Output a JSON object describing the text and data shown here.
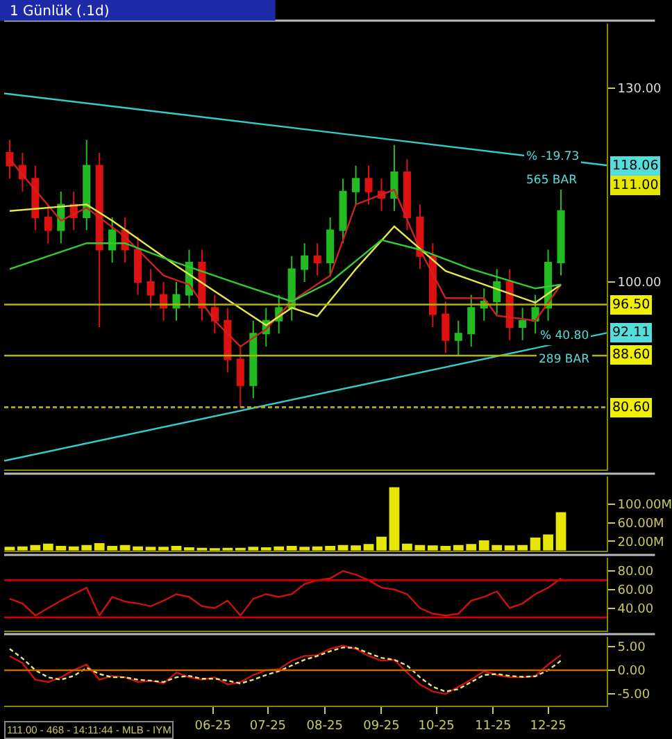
{
  "chart_data": [
    {
      "type": "candlestick",
      "title": "1 Günlük (.1d)",
      "x": [
        "2025-02-10",
        "2025-02-17",
        "2025-02-24",
        "2025-03-03",
        "2025-03-10",
        "2025-03-17",
        "2025-03-24",
        "2025-03-31",
        "2025-04-07",
        "2025-04-14",
        "2025-04-21",
        "2025-04-28",
        "2025-05-05",
        "2025-05-12",
        "2025-05-19",
        "2025-05-26",
        "2025-06-02",
        "2025-06-09",
        "2025-06-16",
        "2025-06-23",
        "2025-06-30",
        "2025-07-07",
        "2025-07-14",
        "2025-07-21",
        "2025-07-28",
        "2025-08-04",
        "2025-08-11",
        "2025-08-18",
        "2025-08-25",
        "2025-09-01",
        "2025-09-08",
        "2025-09-15",
        "2025-09-22",
        "2025-09-29",
        "2025-10-06",
        "2025-10-13",
        "2025-10-20",
        "2025-10-27",
        "2025-11-03",
        "2025-11-10",
        "2025-11-17",
        "2025-11-24",
        "2025-12-01",
        "2025-12-08"
      ],
      "ohlc": [
        [
          120,
          122,
          116,
          118
        ],
        [
          118,
          120,
          114,
          116
        ],
        [
          116,
          118,
          108,
          110
        ],
        [
          110,
          112,
          106,
          108
        ],
        [
          108,
          114,
          106,
          112
        ],
        [
          112,
          114,
          108,
          110
        ],
        [
          110,
          122,
          108,
          118
        ],
        [
          118,
          120,
          93,
          105
        ],
        [
          105,
          110,
          103,
          108
        ],
        [
          108,
          110,
          103,
          105
        ],
        [
          105,
          107,
          98,
          100
        ],
        [
          100,
          102,
          96,
          98
        ],
        [
          98,
          100,
          94,
          96
        ],
        [
          96,
          100,
          94,
          98
        ],
        [
          98,
          105,
          96,
          103
        ],
        [
          103,
          105,
          94,
          96
        ],
        [
          96,
          98,
          92,
          94
        ],
        [
          94,
          96,
          86,
          88
        ],
        [
          88,
          90,
          80.6,
          84
        ],
        [
          84,
          94,
          82,
          92
        ],
        [
          92,
          96,
          90,
          94
        ],
        [
          94,
          98,
          92,
          96
        ],
        [
          96,
          104,
          94,
          102
        ],
        [
          102,
          106,
          100,
          104
        ],
        [
          104,
          106,
          101,
          103
        ],
        [
          103,
          110,
          101,
          108
        ],
        [
          108,
          116,
          106,
          114
        ],
        [
          114,
          118,
          112,
          116
        ],
        [
          116,
          118,
          112,
          114
        ],
        [
          114,
          116,
          111,
          113
        ],
        [
          113,
          121.2,
          111,
          117
        ],
        [
          117,
          119,
          108,
          110
        ],
        [
          110,
          112,
          102,
          104
        ],
        [
          104,
          106,
          93,
          95
        ],
        [
          95,
          97,
          89,
          91
        ],
        [
          91,
          94,
          88.6,
          92
        ],
        [
          92,
          98,
          90,
          96
        ],
        [
          96,
          99,
          94,
          97
        ],
        [
          97,
          102,
          95,
          100
        ],
        [
          100,
          102,
          91,
          93
        ],
        [
          93,
          96,
          91,
          94
        ],
        [
          94,
          98,
          92,
          96
        ],
        [
          96,
          105,
          94,
          103
        ],
        [
          103,
          114.7,
          101,
          111
        ]
      ],
      "colors": [
        "#dd1111",
        "#dd1111",
        "#dd1111",
        "#dd1111",
        "#22bb22",
        "#dd1111",
        "#22bb22",
        "#dd1111",
        "#22bb22",
        "#dd1111",
        "#dd1111",
        "#dd1111",
        "#dd1111",
        "#22bb22",
        "#22bb22",
        "#dd1111",
        "#dd1111",
        "#dd1111",
        "#dd1111",
        "#22bb22",
        "#22bb22",
        "#22bb22",
        "#22bb22",
        "#22bb22",
        "#dd1111",
        "#22bb22",
        "#22bb22",
        "#22bb22",
        "#dd1111",
        "#dd1111",
        "#22bb22",
        "#dd1111",
        "#dd1111",
        "#dd1111",
        "#dd1111",
        "#22bb22",
        "#22bb22",
        "#22bb22",
        "#22bb22",
        "#dd1111",
        "#22bb22",
        "#22bb22",
        "#22bb22",
        "#22bb22"
      ],
      "series": [
        {
          "type": "line",
          "color": "#cc2222",
          "x": [
            "2025-02-10",
            "2025-03-10",
            "2025-03-24",
            "2025-04-14",
            "2025-05-05",
            "2025-05-19",
            "2025-06-02",
            "2025-06-16",
            "2025-06-30",
            "2025-07-14",
            "2025-08-04",
            "2025-08-18",
            "2025-09-08",
            "2025-09-22",
            "2025-10-06",
            "2025-10-27",
            "2025-11-03",
            "2025-11-24",
            "2025-12-08"
          ],
          "values": [
            119,
            109.5,
            111.5,
            107,
            101,
            99.6,
            94,
            90,
            92.7,
            97,
            101,
            112,
            114.3,
            105,
            97.5,
            97.5,
            94.8,
            94,
            99.6
          ]
        },
        {
          "type": "line",
          "color": "#e6e64d",
          "x": [
            "2025-02-10",
            "2025-03-24",
            "2025-04-07",
            "2025-05-12",
            "2025-06-30",
            "2025-07-14",
            "2025-07-28",
            "2025-08-18",
            "2025-09-08",
            "2025-10-06",
            "2025-10-27",
            "2025-11-24",
            "2025-12-08"
          ],
          "values": [
            111,
            112,
            109.5,
            102.5,
            93.3,
            96,
            94.7,
            102,
            108.6,
            101.7,
            99.6,
            96.8,
            99.6
          ]
        },
        {
          "type": "line",
          "color": "#33cc33",
          "x": [
            "2025-02-10",
            "2025-03-24",
            "2025-04-14",
            "2025-05-12",
            "2025-06-16",
            "2025-07-14",
            "2025-08-04",
            "2025-09-01",
            "2025-09-22",
            "2025-10-20",
            "2025-11-24",
            "2025-12-08"
          ],
          "values": [
            102,
            106,
            106,
            103,
            99.6,
            97,
            100,
            106.5,
            105,
            102,
            99,
            99.6
          ]
        },
        {
          "type": "line",
          "color": "#33cccc",
          "x": [
            "2025-02-07",
            "2026-01-02"
          ],
          "values": [
            129.2,
            118.06
          ]
        },
        {
          "type": "line",
          "color": "#33cccc",
          "x": [
            "2025-02-07",
            "2026-01-02"
          ],
          "values": [
            72.3,
            92.11
          ]
        }
      ],
      "xlim": [
        "2025-02-07",
        "2026-01-02"
      ],
      "ylim": [
        71,
        140
      ],
      "yticks": [
        {
          "value": 100,
          "label": "100.00"
        },
        {
          "value": 130,
          "label": "130.00"
        }
      ],
      "tick_labels": "y",
      "ref_lines": [
        {
          "axis": "y",
          "value": 96.5,
          "label": "96.50",
          "color": "#b3b300"
        },
        {
          "axis": "y",
          "value": 88.6,
          "label": "88.60",
          "color": "#b3b300"
        },
        {
          "axis": "y",
          "value": 80.6,
          "label": "80.60",
          "color": "#b3b300",
          "line_style": "dashed"
        }
      ],
      "annotations": [
        {
          "text": "118.06",
          "x": "2026-01-02",
          "y": 118.06
        },
        {
          "text": "92.11",
          "x": "2026-01-02",
          "y": 92.11
        },
        "111.00",
        "% -19.73",
        "565 BAR",
        "% 40.80",
        "289 BAR"
      ]
    },
    {
      "type": "bar",
      "color": "#e6e600",
      "x": [
        "2025-02-10",
        "2025-02-17",
        "2025-02-24",
        "2025-03-03",
        "2025-03-10",
        "2025-03-17",
        "2025-03-24",
        "2025-03-31",
        "2025-04-07",
        "2025-04-14",
        "2025-04-21",
        "2025-04-28",
        "2025-05-05",
        "2025-05-12",
        "2025-05-19",
        "2025-05-26",
        "2025-06-02",
        "2025-06-09",
        "2025-06-16",
        "2025-06-23",
        "2025-06-30",
        "2025-07-07",
        "2025-07-14",
        "2025-07-21",
        "2025-07-28",
        "2025-08-04",
        "2025-08-11",
        "2025-08-18",
        "2025-08-25",
        "2025-09-01",
        "2025-09-08",
        "2025-09-15",
        "2025-09-22",
        "2025-09-29",
        "2025-10-06",
        "2025-10-13",
        "2025-10-20",
        "2025-10-27",
        "2025-11-03",
        "2025-11-10",
        "2025-11-17",
        "2025-11-24",
        "2025-12-01",
        "2025-12-08"
      ],
      "values": [
        8,
        9,
        12,
        15,
        10,
        9,
        12,
        16,
        10,
        12,
        9,
        8,
        8,
        10,
        7,
        6,
        5,
        6,
        6,
        8,
        7,
        9,
        10,
        8,
        9,
        10,
        12,
        11,
        14,
        30,
        137,
        15,
        12,
        11,
        10,
        12,
        14,
        22,
        12,
        11,
        12,
        28,
        35,
        83
      ],
      "xlim": [
        "2025-02-07",
        "2026-01-02"
      ],
      "ylim": [
        0,
        160
      ],
      "yticks": [
        {
          "value": 20,
          "label": "20.00M"
        },
        {
          "value": 60,
          "label": "60.00M"
        },
        {
          "value": 100,
          "label": "100.00M"
        }
      ],
      "tick_labels": "y"
    },
    {
      "type": "line",
      "x": [
        "2025-02-10",
        "2025-02-17",
        "2025-02-24",
        "2025-03-03",
        "2025-03-10",
        "2025-03-17",
        "2025-03-24",
        "2025-03-31",
        "2025-04-07",
        "2025-04-14",
        "2025-04-21",
        "2025-04-28",
        "2025-05-05",
        "2025-05-12",
        "2025-05-19",
        "2025-05-26",
        "2025-06-02",
        "2025-06-09",
        "2025-06-16",
        "2025-06-23",
        "2025-06-30",
        "2025-07-07",
        "2025-07-14",
        "2025-07-21",
        "2025-07-28",
        "2025-08-04",
        "2025-08-11",
        "2025-08-18",
        "2025-08-25",
        "2025-09-01",
        "2025-09-08",
        "2025-09-15",
        "2025-09-22",
        "2025-09-29",
        "2025-10-06",
        "2025-10-13",
        "2025-10-20",
        "2025-10-27",
        "2025-11-03",
        "2025-11-10",
        "2025-11-17",
        "2025-11-24",
        "2025-12-01",
        "2025-12-08"
      ],
      "series": [
        {
          "color": "#cc1111",
          "values": [
            50,
            45,
            32,
            40,
            48,
            55,
            62,
            32,
            52,
            47,
            45,
            42,
            48,
            55,
            52,
            42,
            40,
            48,
            32,
            50,
            55,
            52,
            55,
            66,
            70,
            72,
            80,
            76,
            70,
            62,
            60,
            55,
            40,
            34,
            32,
            34,
            48,
            52,
            58,
            40,
            45,
            55,
            62,
            72
          ]
        }
      ],
      "xlim": [
        "2025-02-07",
        "2026-01-02"
      ],
      "ylim": [
        16,
        94
      ],
      "yticks": [
        {
          "value": 40,
          "label": "40.00"
        },
        {
          "value": 60,
          "label": "60.00"
        },
        {
          "value": 80,
          "label": "80.00"
        }
      ],
      "tick_labels": "y",
      "ref_lines": [
        {
          "axis": "y",
          "value": 70,
          "color": "#cc0000"
        },
        {
          "axis": "y",
          "value": 30,
          "color": "#cc0000"
        }
      ]
    },
    {
      "type": "line",
      "x": [
        "2025-02-10",
        "2025-02-17",
        "2025-02-24",
        "2025-03-03",
        "2025-03-10",
        "2025-03-17",
        "2025-03-24",
        "2025-03-31",
        "2025-04-07",
        "2025-04-14",
        "2025-04-21",
        "2025-04-28",
        "2025-05-05",
        "2025-05-12",
        "2025-05-19",
        "2025-05-26",
        "2025-06-02",
        "2025-06-09",
        "2025-06-16",
        "2025-06-23",
        "2025-06-30",
        "2025-07-07",
        "2025-07-14",
        "2025-07-21",
        "2025-07-28",
        "2025-08-04",
        "2025-08-11",
        "2025-08-18",
        "2025-08-25",
        "2025-09-01",
        "2025-09-08",
        "2025-09-15",
        "2025-09-22",
        "2025-09-29",
        "2025-10-06",
        "2025-10-13",
        "2025-10-20",
        "2025-10-27",
        "2025-11-03",
        "2025-11-10",
        "2025-11-17",
        "2025-11-24",
        "2025-12-01",
        "2025-12-08"
      ],
      "series": [
        {
          "color": "#cc1111",
          "values": [
            3,
            1.5,
            -2,
            -2.5,
            -1.5,
            0,
            1.2,
            -2,
            -1.2,
            -1.5,
            -2.5,
            -2.2,
            -2.8,
            -0.5,
            -1.5,
            -2,
            -1.5,
            -3,
            -2.5,
            -1,
            0,
            0.2,
            2,
            3,
            3.2,
            4.5,
            5.2,
            4.5,
            3,
            2,
            2.2,
            -0.5,
            -3,
            -4.5,
            -5,
            -3.5,
            -2,
            -0.2,
            -1,
            -1.5,
            -1.5,
            -1.2,
            1.2,
            3.2
          ]
        },
        {
          "color": "#e6e680",
          "line_style": "dashed",
          "values": [
            4.5,
            2.5,
            0,
            -1.5,
            -2,
            -1.2,
            0.5,
            -0.8,
            -1.5,
            -1.5,
            -2,
            -2.2,
            -2.5,
            -1.5,
            -1.2,
            -1.8,
            -1.8,
            -2.2,
            -2.8,
            -2,
            -1,
            -0.2,
            1,
            2.2,
            3,
            4,
            4.8,
            4.7,
            3.6,
            2.6,
            2.2,
            1,
            -1.5,
            -3.5,
            -4.5,
            -4,
            -2.5,
            -1,
            -0.8,
            -1.2,
            -1.4,
            -1.3,
            0,
            2
          ]
        }
      ],
      "xlim": [
        "2025-02-07",
        "2026-01-02"
      ],
      "ylim": [
        -7.5,
        7
      ],
      "yticks": [
        {
          "value": -5,
          "label": "-5.00"
        },
        {
          "value": 0,
          "label": "0.00"
        },
        {
          "value": 5,
          "label": "5.00"
        }
      ],
      "xticks": [
        {
          "value": "2025-06-01",
          "label": "06-25"
        },
        {
          "value": "2025-07-01",
          "label": "07-25"
        },
        {
          "value": "2025-08-01",
          "label": "08-25"
        },
        {
          "value": "2025-09-01",
          "label": "09-25"
        },
        {
          "value": "2025-10-01",
          "label": "10-25"
        },
        {
          "value": "2025-11-01",
          "label": "11-25"
        },
        {
          "value": "2025-12-01",
          "label": "12-25"
        }
      ],
      "ref_lines": [
        {
          "axis": "y",
          "value": 0,
          "color": "#cc6600"
        }
      ],
      "annotations": [
        "111.00 - 468 - 14:11:44 - MLB - IYM"
      ]
    }
  ]
}
